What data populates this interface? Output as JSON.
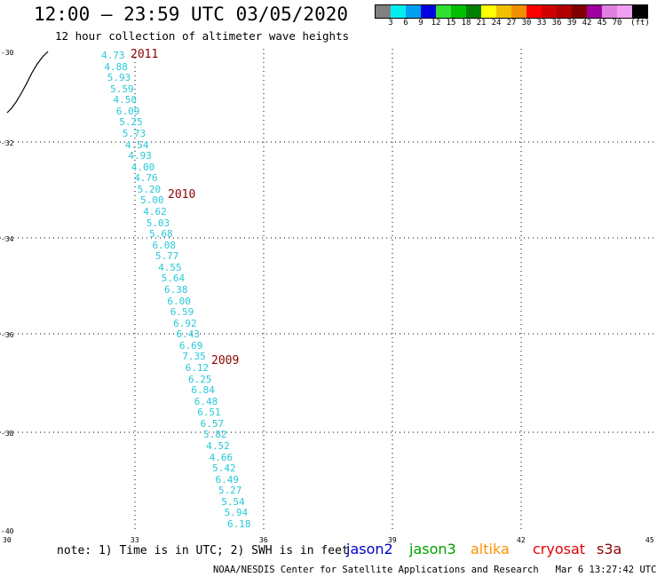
{
  "header": {
    "title": "12:00 – 23:59 UTC 03/05/2020",
    "subtitle": "12 hour collection of altimeter wave heights"
  },
  "legend": {
    "colors": [
      "#808080",
      "#00f0f0",
      "#00a0f0",
      "#0000e0",
      "#30e030",
      "#00c000",
      "#008000",
      "#ffff00",
      "#f0c000",
      "#f09000",
      "#ff0000",
      "#d00000",
      "#b00000",
      "#800000",
      "#a000a0",
      "#e080e0",
      "#f0a0f0",
      "#000000"
    ],
    "labels": [
      "3",
      "6",
      "9",
      "12",
      "15",
      "18",
      "21",
      "24",
      "27",
      "30",
      "33",
      "36",
      "39",
      "42",
      "45",
      "70"
    ],
    "unit": "(ft)"
  },
  "axes": {
    "y_ticks": [
      "-30",
      "-32",
      "-34",
      "-36",
      "-38",
      "-40"
    ],
    "x_ticks": [
      "30",
      "33",
      "36",
      "39",
      "42",
      "45"
    ]
  },
  "wave_heights": [
    "4.73",
    "4.88",
    "5.93",
    "5.59",
    "4.50",
    "6.09",
    "5.25",
    "5.73",
    "4.54",
    "4.93",
    "4.00",
    "4.76",
    "5.20",
    "5.00",
    "4.62",
    "5.03",
    "5.68",
    "6.08",
    "5.77",
    "4.55",
    "5.64",
    "6.38",
    "6.00",
    "6.59",
    "6.92",
    "6.43",
    "6.69",
    "7.35",
    "6.12",
    "6.25",
    "6.84",
    "6.48",
    "6.51",
    "6.57",
    "5.82",
    "4.52",
    "4.66",
    "5.42",
    "6.49",
    "5.27",
    "5.54",
    "5.94",
    "6.18"
  ],
  "orbits": [
    "2011",
    "2010",
    "2009"
  ],
  "note": "note: 1) Time is in UTC; 2) SWH is in feet",
  "satellites": [
    {
      "name": "jason2",
      "color": "#0000c8"
    },
    {
      "name": "jason3",
      "color": "#00a000"
    },
    {
      "name": "altika",
      "color": "#ff9000"
    },
    {
      "name": "cryosat",
      "color": "#e00000"
    },
    {
      "name": "s3a",
      "color": "#8b0000"
    }
  ],
  "footer": {
    "credit": "NOAA/NESDIS Center for Satellite Applications and Research",
    "timestamp": "Mar  6 13:27:42 UTC 2020"
  }
}
